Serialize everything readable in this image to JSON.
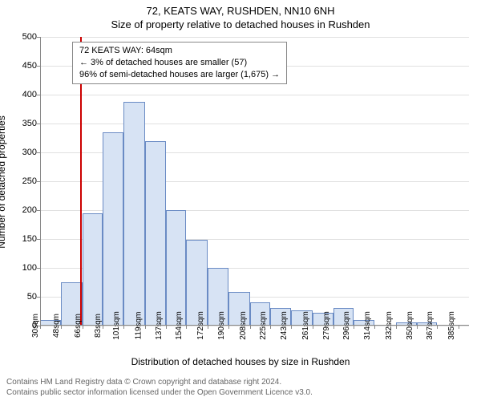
{
  "title": "72, KEATS WAY, RUSHDEN, NN10 6NH",
  "subtitle": "Size of property relative to detached houses in Rushden",
  "y_axis_label": "Number of detached properties",
  "x_axis_label": "Distribution of detached houses by size in Rushden",
  "annotation": {
    "line1": "72 KEATS WAY: 64sqm",
    "line2": "← 3% of detached houses are smaller (57)",
    "line3": "96% of semi-detached houses are larger (1,675) →"
  },
  "footer": {
    "line1": "Contains HM Land Registry data © Crown copyright and database right 2024.",
    "line2": "Contains public sector information licensed under the Open Government Licence v3.0."
  },
  "chart": {
    "type": "histogram",
    "background_color": "#ffffff",
    "grid_color": "#e0e0e0",
    "axis_color": "#888888",
    "bar_fill": "#d7e3f4",
    "bar_stroke": "#6a8bc4",
    "reference_line_color": "#cc0000",
    "reference_value": 64,
    "title_fontsize": 13,
    "label_fontsize": 12,
    "tick_fontsize": 11,
    "ylim": [
      0,
      500
    ],
    "ytick_step": 50,
    "x_ticks": [
      30,
      48,
      66,
      83,
      101,
      119,
      137,
      154,
      172,
      190,
      208,
      225,
      243,
      261,
      279,
      296,
      314,
      332,
      350,
      367,
      385
    ],
    "x_tick_suffix": "sqm",
    "x_range": [
      30,
      394
    ],
    "bars": [
      {
        "x0": 30,
        "x1": 48,
        "y": 10
      },
      {
        "x0": 48,
        "x1": 66,
        "y": 75
      },
      {
        "x0": 66,
        "x1": 83,
        "y": 195
      },
      {
        "x0": 83,
        "x1": 101,
        "y": 335
      },
      {
        "x0": 101,
        "x1": 119,
        "y": 388
      },
      {
        "x0": 119,
        "x1": 137,
        "y": 320
      },
      {
        "x0": 137,
        "x1": 154,
        "y": 200
      },
      {
        "x0": 154,
        "x1": 172,
        "y": 148
      },
      {
        "x0": 172,
        "x1": 190,
        "y": 100
      },
      {
        "x0": 190,
        "x1": 208,
        "y": 58
      },
      {
        "x0": 208,
        "x1": 225,
        "y": 40
      },
      {
        "x0": 225,
        "x1": 243,
        "y": 30
      },
      {
        "x0": 243,
        "x1": 261,
        "y": 27
      },
      {
        "x0": 261,
        "x1": 279,
        "y": 22
      },
      {
        "x0": 279,
        "x1": 296,
        "y": 30
      },
      {
        "x0": 296,
        "x1": 314,
        "y": 10
      },
      {
        "x0": 314,
        "x1": 332,
        "y": 2
      },
      {
        "x0": 332,
        "x1": 350,
        "y": 5
      },
      {
        "x0": 350,
        "x1": 367,
        "y": 5
      },
      {
        "x0": 367,
        "x1": 385,
        "y": 2
      }
    ]
  }
}
